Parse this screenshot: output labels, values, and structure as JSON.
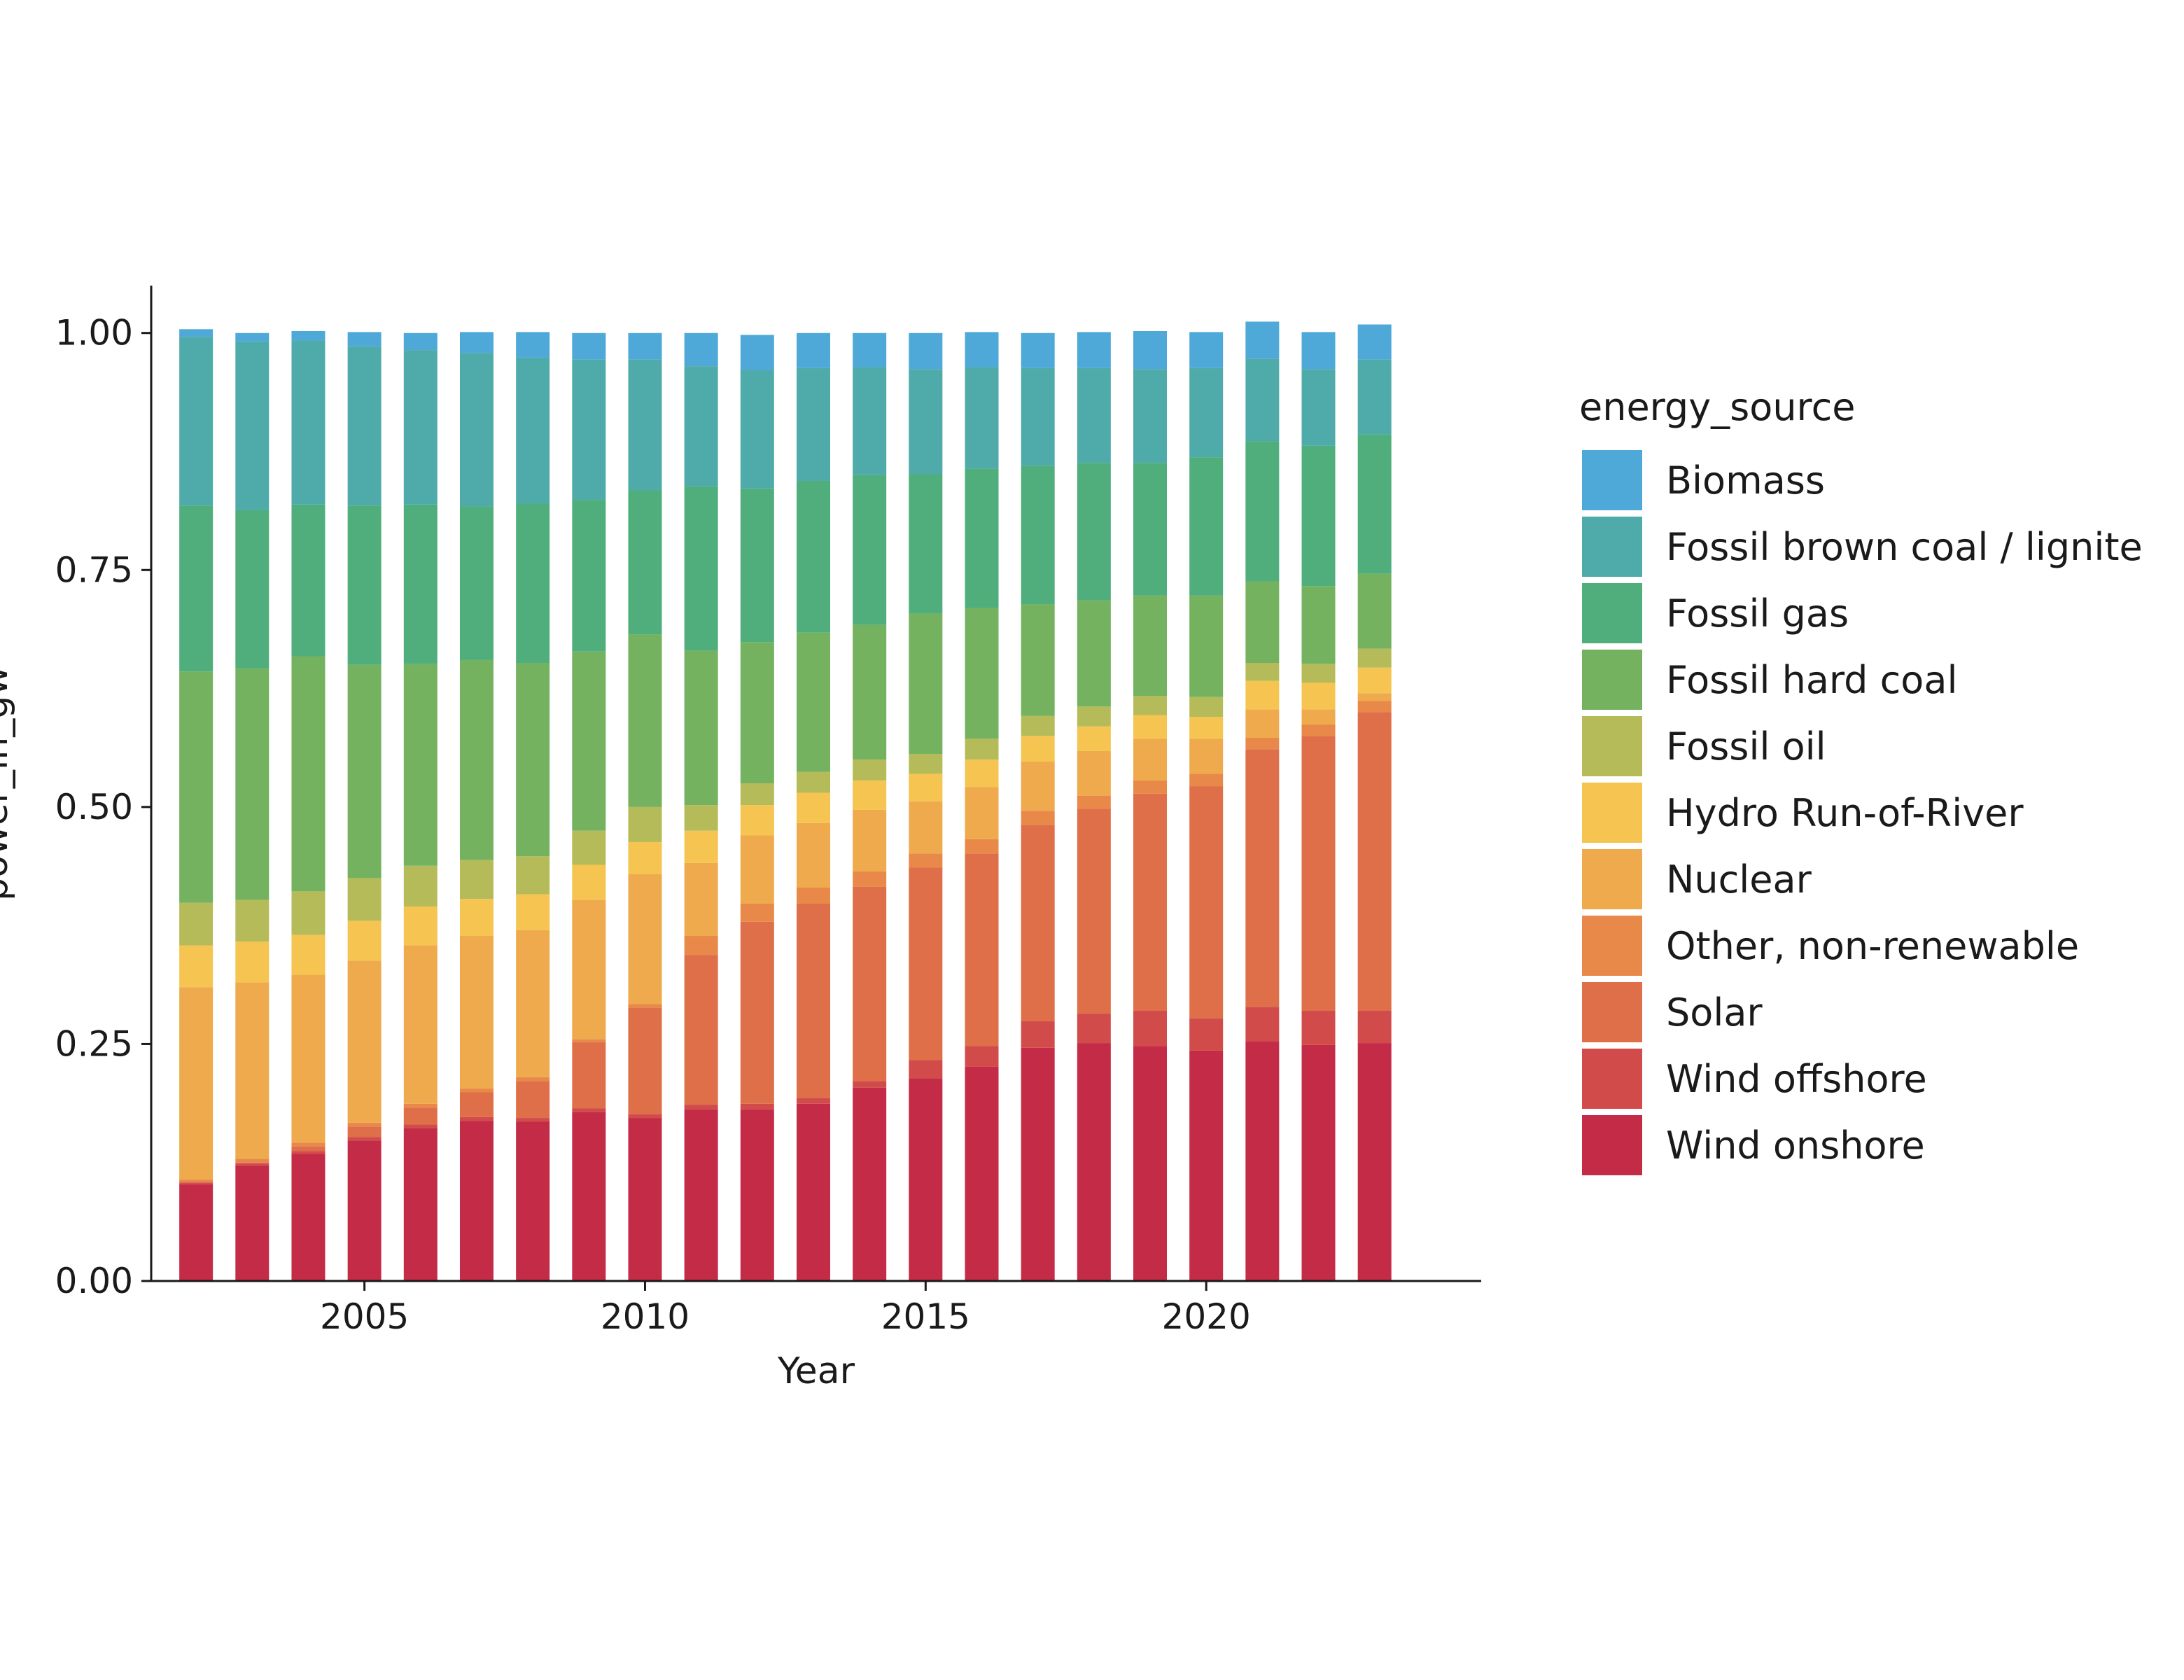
{
  "chart_data": {
    "type": "bar",
    "stacked": true,
    "xlabel": "Year",
    "ylabel": "power_in_gw",
    "ylim": [
      0,
      1.05
    ],
    "yticks": [
      0,
      0.25,
      0.5,
      0.75,
      1.0
    ],
    "ytick_labels": [
      "0.00",
      "0.25",
      "0.50",
      "0.75",
      "1.00"
    ],
    "xlim": [
      2001.2,
      2024.9
    ],
    "xticks": [
      2005,
      2010,
      2015,
      2020
    ],
    "xtick_labels": [
      "2005",
      "2010",
      "2015",
      "2020"
    ],
    "grid": false,
    "legend": {
      "title": "energy_source",
      "position": "right"
    },
    "categories": [
      2002,
      2003,
      2004,
      2005,
      2006,
      2007,
      2008,
      2009,
      2010,
      2011,
      2012,
      2013,
      2014,
      2015,
      2016,
      2017,
      2018,
      2019,
      2020,
      2021,
      2022,
      2023
    ],
    "series": [
      {
        "name": "Wind onshore",
        "color": "#c42b46",
        "values": [
          0.102,
          0.122,
          0.134,
          0.148,
          0.161,
          0.169,
          0.168,
          0.178,
          0.172,
          0.181,
          0.181,
          0.187,
          0.204,
          0.214,
          0.226,
          0.246,
          0.251,
          0.248,
          0.243,
          0.253,
          0.249,
          0.251
        ]
      },
      {
        "name": "Wind offshore",
        "color": "#d14b4b",
        "values": [
          0.002,
          0.002,
          0.003,
          0.004,
          0.004,
          0.004,
          0.004,
          0.004,
          0.004,
          0.005,
          0.006,
          0.006,
          0.007,
          0.019,
          0.022,
          0.028,
          0.031,
          0.037,
          0.034,
          0.036,
          0.036,
          0.034
        ]
      },
      {
        "name": "Solar",
        "color": "#de6f48",
        "values": [
          0.0,
          0.001,
          0.005,
          0.011,
          0.018,
          0.026,
          0.039,
          0.07,
          0.112,
          0.158,
          0.192,
          0.205,
          0.205,
          0.203,
          0.203,
          0.207,
          0.216,
          0.229,
          0.245,
          0.272,
          0.29,
          0.315
        ]
      },
      {
        "name": "Other, non-renewable",
        "color": "#e8894a",
        "values": [
          0.003,
          0.004,
          0.004,
          0.004,
          0.004,
          0.004,
          0.004,
          0.003,
          0.004,
          0.02,
          0.019,
          0.017,
          0.016,
          0.015,
          0.015,
          0.015,
          0.014,
          0.014,
          0.013,
          0.012,
          0.012,
          0.012
        ]
      },
      {
        "name": "Nuclear",
        "color": "#eeaa4c",
        "values": [
          0.203,
          0.186,
          0.177,
          0.171,
          0.167,
          0.161,
          0.155,
          0.147,
          0.137,
          0.077,
          0.072,
          0.068,
          0.065,
          0.055,
          0.055,
          0.052,
          0.047,
          0.044,
          0.037,
          0.03,
          0.016,
          0.008
        ]
      },
      {
        "name": "Hydro Run-of-River",
        "color": "#f5c451",
        "values": [
          0.044,
          0.043,
          0.042,
          0.042,
          0.041,
          0.039,
          0.038,
          0.037,
          0.034,
          0.034,
          0.032,
          0.032,
          0.031,
          0.029,
          0.029,
          0.027,
          0.026,
          0.025,
          0.023,
          0.03,
          0.028,
          0.027
        ]
      },
      {
        "name": "Fossil oil",
        "color": "#b6bb59",
        "values": [
          0.045,
          0.044,
          0.046,
          0.045,
          0.043,
          0.041,
          0.04,
          0.036,
          0.037,
          0.027,
          0.023,
          0.022,
          0.022,
          0.021,
          0.022,
          0.021,
          0.021,
          0.02,
          0.021,
          0.019,
          0.02,
          0.02
        ]
      },
      {
        "name": "Fossil hard coal",
        "color": "#74b25f",
        "values": [
          0.244,
          0.244,
          0.248,
          0.225,
          0.213,
          0.211,
          0.204,
          0.189,
          0.182,
          0.163,
          0.149,
          0.147,
          0.142,
          0.148,
          0.138,
          0.118,
          0.112,
          0.106,
          0.107,
          0.086,
          0.082,
          0.079
        ]
      },
      {
        "name": "Fossil gas",
        "color": "#4fae7b",
        "values": [
          0.175,
          0.167,
          0.16,
          0.168,
          0.168,
          0.162,
          0.168,
          0.16,
          0.152,
          0.173,
          0.162,
          0.16,
          0.158,
          0.147,
          0.147,
          0.146,
          0.145,
          0.14,
          0.146,
          0.148,
          0.148,
          0.147
        ]
      },
      {
        "name": "Fossil brown coal / lignite",
        "color": "#4fabaa",
        "values": [
          0.178,
          0.178,
          0.173,
          0.168,
          0.163,
          0.162,
          0.154,
          0.148,
          0.138,
          0.127,
          0.125,
          0.119,
          0.114,
          0.111,
          0.107,
          0.103,
          0.1,
          0.099,
          0.094,
          0.087,
          0.081,
          0.079
        ]
      },
      {
        "name": "Biomass",
        "color": "#4ea9d8",
        "values": [
          0.008,
          0.009,
          0.01,
          0.015,
          0.018,
          0.022,
          0.027,
          0.028,
          0.028,
          0.035,
          0.037,
          0.037,
          0.036,
          0.038,
          0.037,
          0.037,
          0.038,
          0.04,
          0.038,
          0.039,
          0.039,
          0.037
        ]
      }
    ]
  }
}
